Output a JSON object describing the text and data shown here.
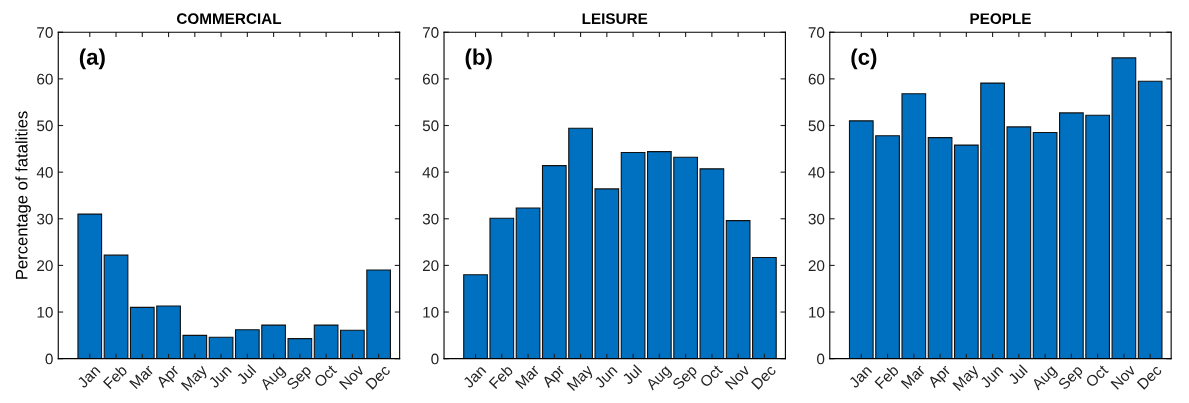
{
  "chart_data": [
    {
      "type": "bar",
      "title": "COMMERCIAL",
      "ylabel": "Percentage of fatalities",
      "annotations": [
        "(a)"
      ],
      "categories": [
        "Jan",
        "Feb",
        "Mar",
        "Apr",
        "May",
        "Jun",
        "Jul",
        "Aug",
        "Sep",
        "Oct",
        "Nov",
        "Dec"
      ],
      "color": "#0070c0",
      "values": [
        31,
        22.2,
        11,
        11.3,
        5,
        4.6,
        6.2,
        7.2,
        4.3,
        7.2,
        6.1,
        19
      ],
      "ylim": [
        0,
        70
      ],
      "yticks": [
        0,
        10,
        20,
        30,
        40,
        50,
        60,
        70
      ],
      "grid": false
    },
    {
      "type": "bar",
      "title": "LEISURE",
      "annotations": [
        "(b)"
      ],
      "categories": [
        "Jan",
        "Feb",
        "Mar",
        "Apr",
        "May",
        "Jun",
        "Jul",
        "Aug",
        "Sep",
        "Oct",
        "Nov",
        "Dec"
      ],
      "color": "#0070c0",
      "values": [
        18,
        30.1,
        32.3,
        41.4,
        49.4,
        36.4,
        44.2,
        44.4,
        43.2,
        40.7,
        29.6,
        21.7
      ],
      "ylim": [
        0,
        70
      ],
      "yticks": [
        0,
        10,
        20,
        30,
        40,
        50,
        60,
        70
      ],
      "grid": false
    },
    {
      "type": "bar",
      "title": "PEOPLE",
      "annotations": [
        "(c)"
      ],
      "categories": [
        "Jan",
        "Feb",
        "Mar",
        "Apr",
        "May",
        "Jun",
        "Jul",
        "Aug",
        "Sep",
        "Oct",
        "Nov",
        "Dec"
      ],
      "color": "#0070c0",
      "values": [
        51,
        47.8,
        56.8,
        47.4,
        45.8,
        59.1,
        49.7,
        48.5,
        52.7,
        52.2,
        64.5,
        59.5
      ],
      "ylim": [
        0,
        70
      ],
      "yticks": [
        0,
        10,
        20,
        30,
        40,
        50,
        60,
        70
      ],
      "grid": false
    }
  ]
}
